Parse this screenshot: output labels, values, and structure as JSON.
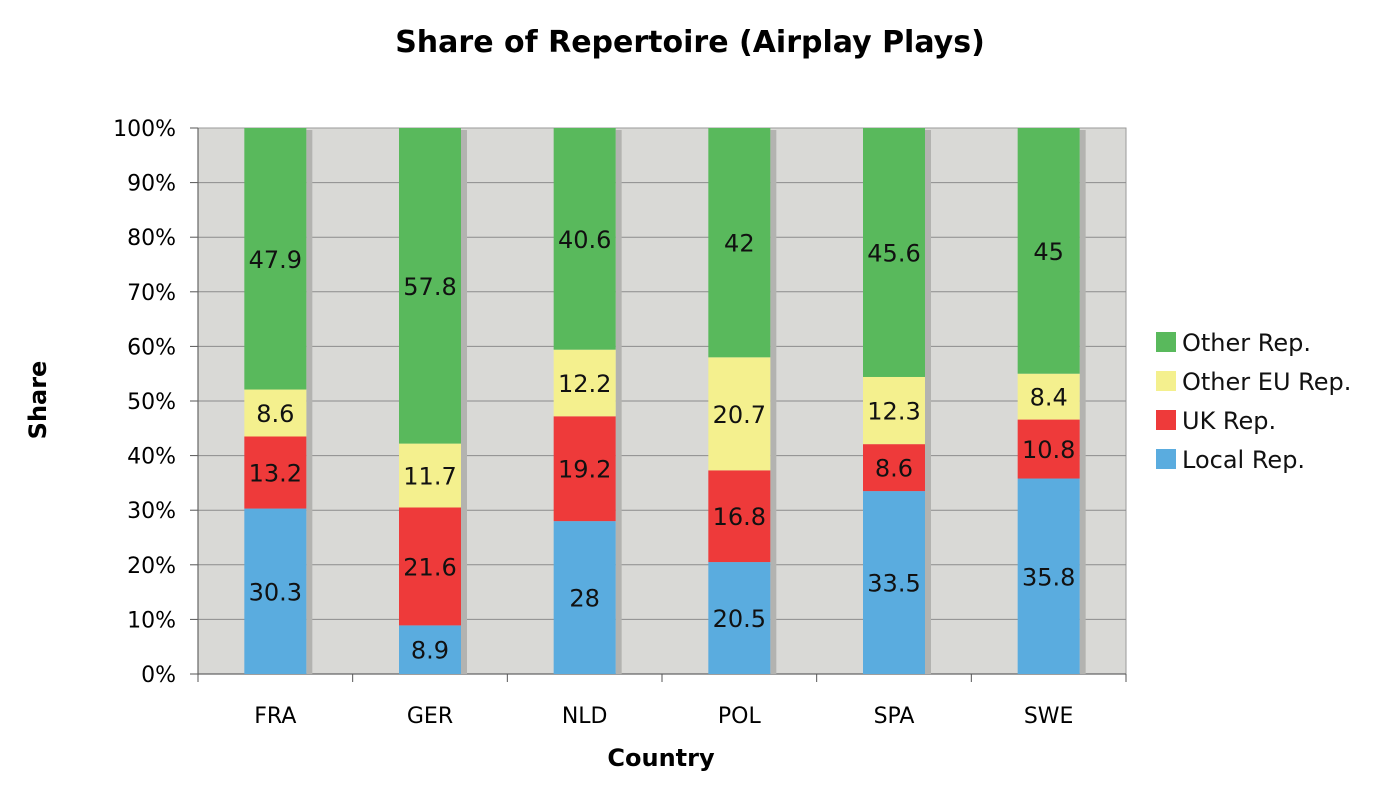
{
  "chart_data": {
    "type": "bar",
    "stacked": true,
    "title": "Share of Repertoire (Airplay Plays)",
    "xlabel": "Country",
    "ylabel": "Share",
    "categories": [
      "FRA",
      "GER",
      "NLD",
      "POL",
      "SPA",
      "SWE"
    ],
    "ylim": [
      0,
      100
    ],
    "y_ticks": [
      "0%",
      "10%",
      "20%",
      "30%",
      "40%",
      "50%",
      "60%",
      "70%",
      "80%",
      "90%",
      "100%"
    ],
    "grid": true,
    "legend_position": "right",
    "plot_background": "#d9d9d6",
    "series": [
      {
        "name": "Local Rep.",
        "color": "#5aacdf",
        "values": [
          30.3,
          8.9,
          28,
          20.5,
          33.5,
          35.8
        ],
        "labels": [
          "30.3",
          "8.9",
          "28",
          "20.5",
          "33.5",
          "35.8"
        ]
      },
      {
        "name": "UK Rep.",
        "color": "#ee3a3a",
        "values": [
          13.2,
          21.6,
          19.2,
          16.8,
          8.6,
          10.8
        ],
        "labels": [
          "13.2",
          "21.6",
          "19.2",
          "16.8",
          "8.6",
          "10.8"
        ]
      },
      {
        "name": "Other EU Rep.",
        "color": "#f4f08e",
        "values": [
          8.6,
          11.7,
          12.2,
          20.7,
          12.3,
          8.4
        ],
        "labels": [
          "8.6",
          "11.7",
          "12.2",
          "20.7",
          "12.3",
          "8.4"
        ]
      },
      {
        "name": "Other Rep.",
        "color": "#59b95c",
        "values": [
          47.9,
          57.8,
          40.6,
          42,
          45.6,
          45
        ],
        "labels": [
          "47.9",
          "57.8",
          "40.6",
          "42",
          "45.6",
          "45"
        ]
      }
    ],
    "legend_order": [
      "Other Rep.",
      "Other EU Rep.",
      "UK Rep.",
      "Local Rep."
    ]
  }
}
